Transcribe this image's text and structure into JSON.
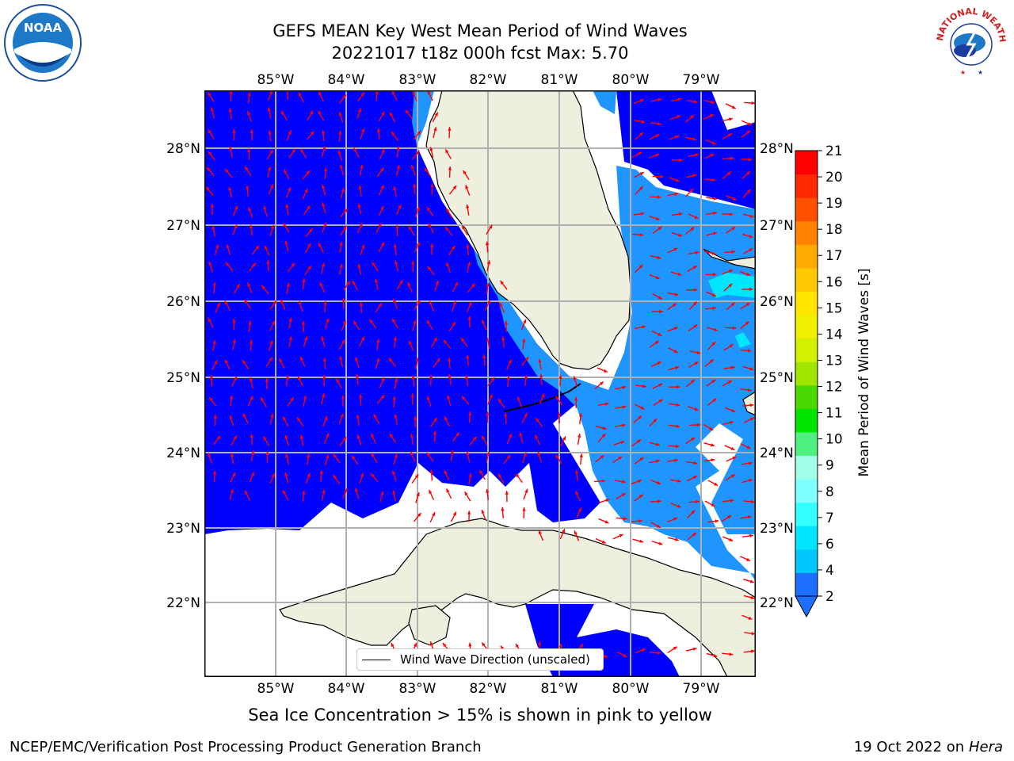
{
  "header": {
    "title_line1": "GEFS MEAN Key West Mean Period of Wind Waves",
    "title_line2": "20221017 t18z 000h fcst   Max: 5.70"
  },
  "logos": {
    "noaa_text": "NOAA",
    "nws_ring_text": "NATIONAL WEATHER SERVICE"
  },
  "map": {
    "lon_ticks": [
      "85°W",
      "84°W",
      "83°W",
      "82°W",
      "81°W",
      "80°W",
      "79°W"
    ],
    "lat_ticks": [
      "28°N",
      "27°N",
      "26°N",
      "25°N",
      "24°N",
      "23°N",
      "22°N"
    ],
    "legend_label": "Wind Wave Direction (unscaled)",
    "colors": {
      "land": "#efefdf",
      "band_2_4": "#0000ff",
      "band_4_6": "#1f96ff",
      "band_6_8": "#00e6ff",
      "arrow": "#ff0000"
    }
  },
  "colorbar": {
    "label": "Mean Period of Wind Waves [s]",
    "ticks": [
      "2",
      "4",
      "6",
      "7",
      "8",
      "9",
      "10",
      "11",
      "12",
      "13",
      "14",
      "15",
      "16",
      "17",
      "18",
      "19",
      "20",
      "21"
    ],
    "colors": [
      "#1e6eff",
      "#00c8ff",
      "#00e6ff",
      "#32ffff",
      "#7fffff",
      "#a0ffe6",
      "#50f080",
      "#00e600",
      "#4bd700",
      "#a0e600",
      "#d2f000",
      "#f0f000",
      "#ffe600",
      "#ffc800",
      "#ffaa00",
      "#ff8200",
      "#ff5000",
      "#ff2800",
      "#ff0000"
    ]
  },
  "footer": {
    "sea_ice_note": "Sea Ice Concentration > 15% is shown in pink to yellow",
    "branch": "NCEP/EMC/Verification Post Processing Product Generation Branch",
    "date_prefix": "19 Oct 2022 on ",
    "host": "Hera"
  }
}
